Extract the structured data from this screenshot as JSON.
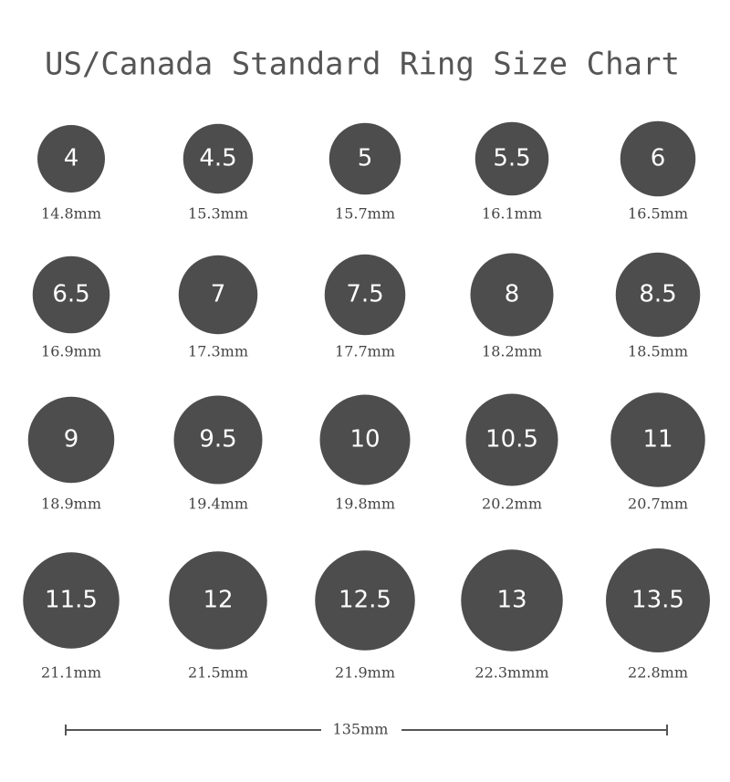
{
  "title": "US/Canada Standard Ring Size Chart",
  "rings": [
    {
      "size": "4",
      "diameter": "14.8mm"
    },
    {
      "size": "4.5",
      "diameter": "15.3mm"
    },
    {
      "size": "5",
      "diameter": "15.7mm"
    },
    {
      "size": "5.5",
      "diameter": "16.1mm"
    },
    {
      "size": "6",
      "diameter": "16.5mm"
    },
    {
      "size": "6.5",
      "diameter": "16.9mm"
    },
    {
      "size": "7",
      "diameter": "17.3mm"
    },
    {
      "size": "7.5",
      "diameter": "17.7mm"
    },
    {
      "size": "8",
      "diameter": "18.2mm"
    },
    {
      "size": "8.5",
      "diameter": "18.5mm"
    },
    {
      "size": "9",
      "diameter": "18.9mm"
    },
    {
      "size": "9.5",
      "diameter": "19.4mm"
    },
    {
      "size": "10",
      "diameter": "19.8mm"
    },
    {
      "size": "10.5",
      "diameter": "20.2mm"
    },
    {
      "size": "11",
      "diameter": "20.7mm"
    },
    {
      "size": "11.5",
      "diameter": "21.1mm"
    },
    {
      "size": "12",
      "diameter": "21.5mm"
    },
    {
      "size": "12.5",
      "diameter": "21.9mm"
    },
    {
      "size": "13",
      "diameter": "22.3mmm"
    },
    {
      "size": "13.5",
      "diameter": "22.8mm"
    }
  ],
  "scale_label": "135mm"
}
